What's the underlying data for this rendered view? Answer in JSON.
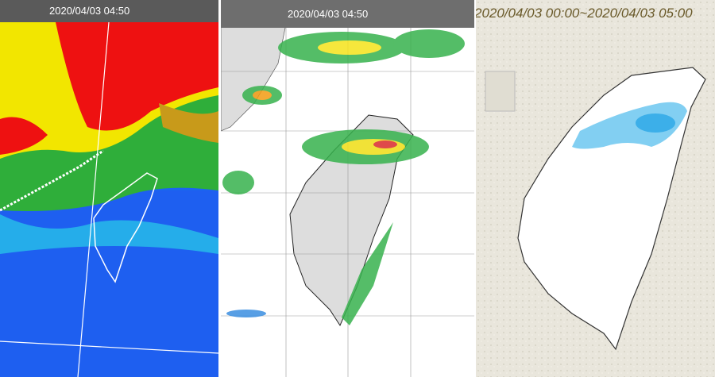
{
  "panels": [
    {
      "timestamp": "2020/04/03 04:50"
    },
    {
      "timestamp": "2020/04/03 04:50"
    },
    {
      "timestamp": "2020/04/03 00:00~2020/04/03 05:00"
    }
  ]
}
